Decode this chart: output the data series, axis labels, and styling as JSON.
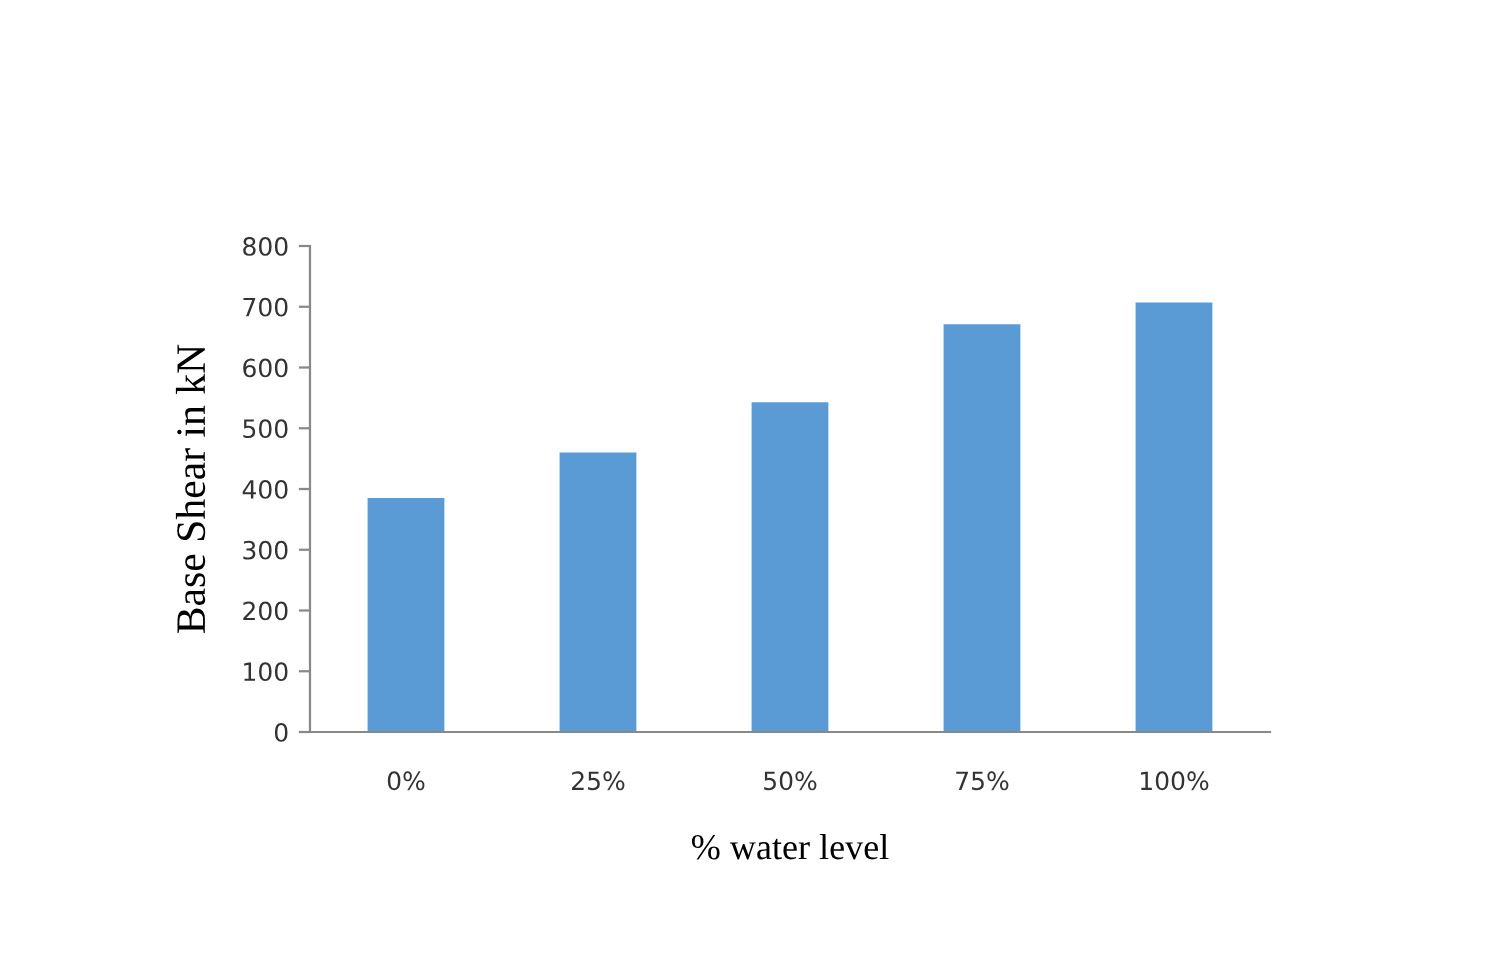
{
  "chart_data": {
    "type": "bar",
    "xlabel": "% water level",
    "ylabel": "Base Shear in kN",
    "categories": [
      "0%",
      "25%",
      "50%",
      "75%",
      "100%"
    ],
    "values": [
      385,
      460,
      543,
      671,
      707
    ],
    "color": "#5b9bd5",
    "ylim": [
      0,
      800
    ],
    "yticks": [
      0,
      100,
      200,
      300,
      400,
      500,
      600,
      700,
      800
    ],
    "grid": false,
    "legend": false
  }
}
